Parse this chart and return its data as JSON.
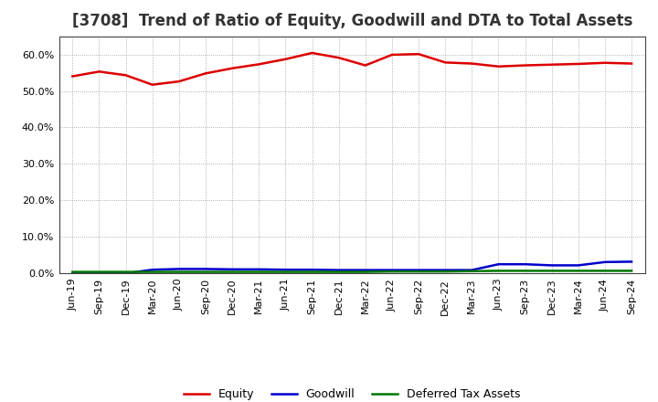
{
  "title": "[3708]  Trend of Ratio of Equity, Goodwill and DTA to Total Assets",
  "x_labels": [
    "Jun-19",
    "Sep-19",
    "Dec-19",
    "Mar-20",
    "Jun-20",
    "Sep-20",
    "Dec-20",
    "Mar-21",
    "Jun-21",
    "Sep-21",
    "Dec-21",
    "Mar-22",
    "Jun-22",
    "Sep-22",
    "Dec-22",
    "Mar-23",
    "Jun-23",
    "Sep-23",
    "Dec-23",
    "Mar-24",
    "Jun-24",
    "Sep-24"
  ],
  "equity": [
    0.54,
    0.553,
    0.543,
    0.517,
    0.526,
    0.548,
    0.562,
    0.573,
    0.587,
    0.604,
    0.591,
    0.57,
    0.599,
    0.601,
    0.578,
    0.575,
    0.567,
    0.57,
    0.572,
    0.574,
    0.577,
    0.575
  ],
  "goodwill": [
    0.0,
    0.0,
    0.0,
    0.01,
    0.012,
    0.012,
    0.011,
    0.011,
    0.01,
    0.01,
    0.009,
    0.009,
    0.009,
    0.009,
    0.009,
    0.009,
    0.025,
    0.025,
    0.022,
    0.022,
    0.031,
    0.032
  ],
  "dta": [
    0.004,
    0.004,
    0.004,
    0.004,
    0.004,
    0.004,
    0.004,
    0.004,
    0.004,
    0.004,
    0.004,
    0.004,
    0.005,
    0.005,
    0.005,
    0.006,
    0.007,
    0.007,
    0.007,
    0.007,
    0.007,
    0.007
  ],
  "equity_color": "#dd0000",
  "goodwill_color": "#0000cc",
  "dta_color": "#007700",
  "bg_color": "#ffffff",
  "plot_bg_color": "#ffffff",
  "ylim": [
    0.0,
    0.65
  ],
  "yticks": [
    0.0,
    0.1,
    0.2,
    0.3,
    0.4,
    0.5,
    0.6
  ],
  "legend_labels": [
    "Equity",
    "Goodwill",
    "Deferred Tax Assets"
  ],
  "title_fontsize": 12,
  "axis_fontsize": 8,
  "legend_fontsize": 9
}
